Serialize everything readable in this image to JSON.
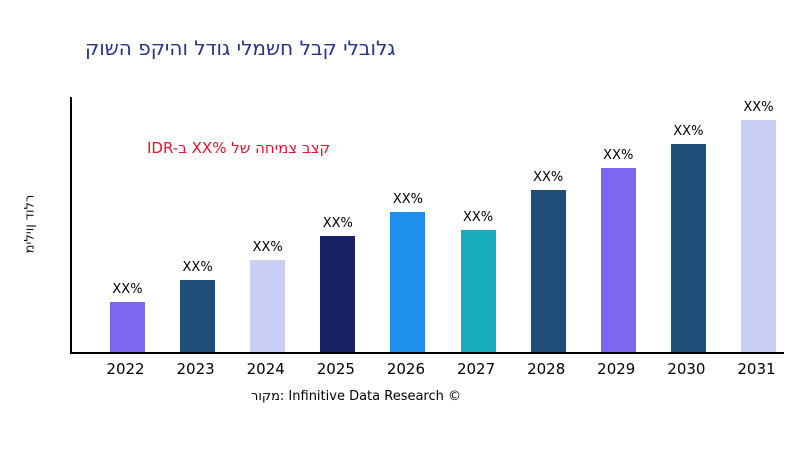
{
  "chart_data": {
    "type": "bar",
    "title": "קושה פקיהו לדוג ילמשח לבק ילבולג",
    "title_color": "#27348B",
    "ylabel": "מיליון דולר",
    "categories": [
      "2022",
      "2023",
      "2024",
      "2025",
      "2026",
      "2027",
      "2028",
      "2029",
      "2030",
      "2031"
    ],
    "values": [
      50,
      72,
      92,
      116,
      140,
      122,
      162,
      184,
      208,
      232
    ],
    "value_labels": [
      "XX%",
      "XX%",
      "XX%",
      "XX%",
      "XX%",
      "XX%",
      "XX%",
      "XX%",
      "XX%",
      "XX%"
    ],
    "bar_colors": [
      "#7B68EE",
      "#1F4E79",
      "#C9CEF4",
      "#1A2066",
      "#1E8FEA",
      "#18ADBD",
      "#1F4E79",
      "#7B68EE",
      "#1F4E79",
      "#C9CEF4"
    ],
    "ylim": [
      0,
      255
    ],
    "grid": false,
    "legend": null,
    "annotation": {
      "text": "IDR-ב XX% לש החימצ בצק",
      "color": "#E8112D"
    },
    "source": "רוקמ: Infinitive Data Research ©",
    "axis_color": "#000000"
  }
}
